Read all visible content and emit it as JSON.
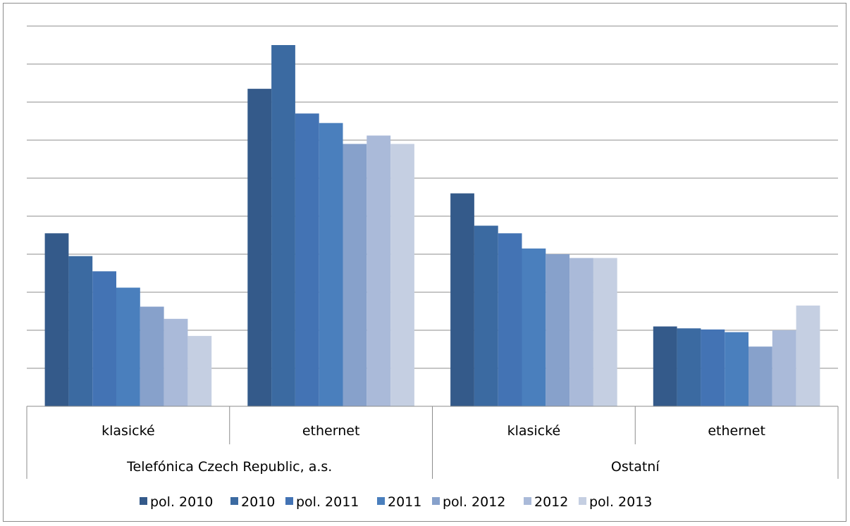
{
  "chart_data": {
    "type": "bar",
    "title": "",
    "xlabel": "",
    "ylabel": "",
    "ylim": [
      0,
      10
    ],
    "grid": true,
    "legend_position": "bottom",
    "groups": [
      {
        "label": "Telefónica Czech Republic, a.s.",
        "categories": [
          "klasické",
          "ethernet"
        ]
      },
      {
        "label": "Ostatní",
        "categories": [
          "klasické",
          "ethernet"
        ]
      }
    ],
    "categories": [
      "klasické",
      "ethernet",
      "klasické",
      "ethernet"
    ],
    "series": [
      {
        "name": "pol. 2010",
        "color": "#345a8a",
        "values": [
          4.55,
          8.35,
          5.6,
          2.1
        ]
      },
      {
        "name": "2010",
        "color": "#3b6aa1",
        "values": [
          3.95,
          9.5,
          4.75,
          2.05
        ]
      },
      {
        "name": "pol. 2011",
        "color": "#4373b4",
        "values": [
          3.55,
          7.7,
          4.55,
          2.02
        ]
      },
      {
        "name": "2011",
        "color": "#4a7fbd",
        "values": [
          3.12,
          7.45,
          4.15,
          1.95
        ]
      },
      {
        "name": "pol. 2012",
        "color": "#87a1cb",
        "values": [
          2.62,
          6.9,
          4.0,
          1.57
        ]
      },
      {
        "name": "2012",
        "color": "#aabad9",
        "values": [
          2.3,
          7.12,
          3.9,
          2.0
        ]
      },
      {
        "name": "pol. 2013",
        "color": "#c5cfe2",
        "values": [
          1.85,
          6.9,
          3.9,
          2.65
        ]
      }
    ]
  }
}
